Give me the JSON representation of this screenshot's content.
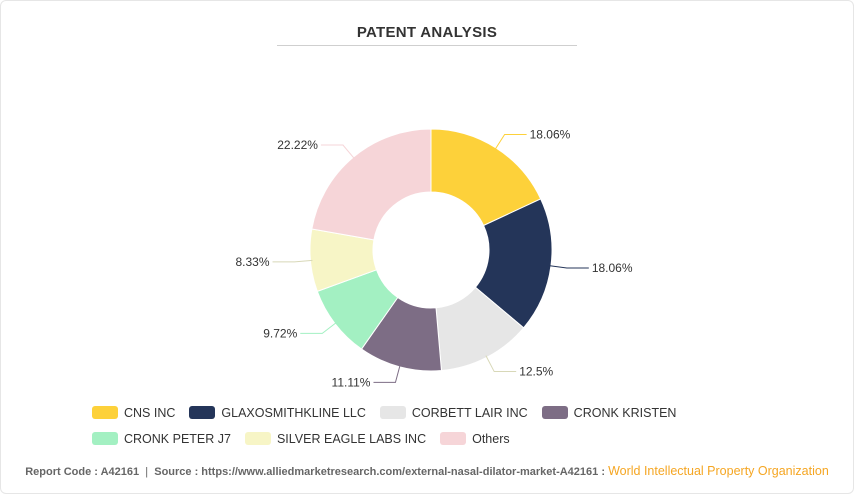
{
  "title": "PATENT ANALYSIS",
  "chart_data": {
    "type": "pie",
    "donut": true,
    "title": "PATENT ANALYSIS",
    "slices": [
      {
        "name": "CNS INC",
        "value": 18.06,
        "label": "18.06%",
        "color": "#fdd13a"
      },
      {
        "name": "GLAXOSMITHKLINE LLC",
        "value": 18.06,
        "label": "18.06%",
        "color": "#243559"
      },
      {
        "name": "CORBETT LAIR INC",
        "value": 12.5,
        "label": "12.5%",
        "color": "#e6e6e6"
      },
      {
        "name": "CRONK KRISTEN",
        "value": 11.11,
        "label": "11.11%",
        "color": "#7d6d85"
      },
      {
        "name": "CRONK PETER J7",
        "value": 9.72,
        "label": "9.72%",
        "color": "#a3f0c2"
      },
      {
        "name": "SILVER EAGLE LABS INC",
        "value": 8.33,
        "label": "8.33%",
        "color": "#f7f5c6"
      },
      {
        "name": "Others",
        "value": 22.22,
        "label": "22.22%",
        "color": "#f6d5d8"
      }
    ],
    "legend_position": "bottom"
  },
  "footer": {
    "report_code_label": "Report Code : A42161",
    "separator": "|",
    "source_text": "Source : https://www.alliedmarketresearch.com/external-nasal-dilator-market-A42161 :",
    "organization": "World Intellectual Property Organization"
  }
}
